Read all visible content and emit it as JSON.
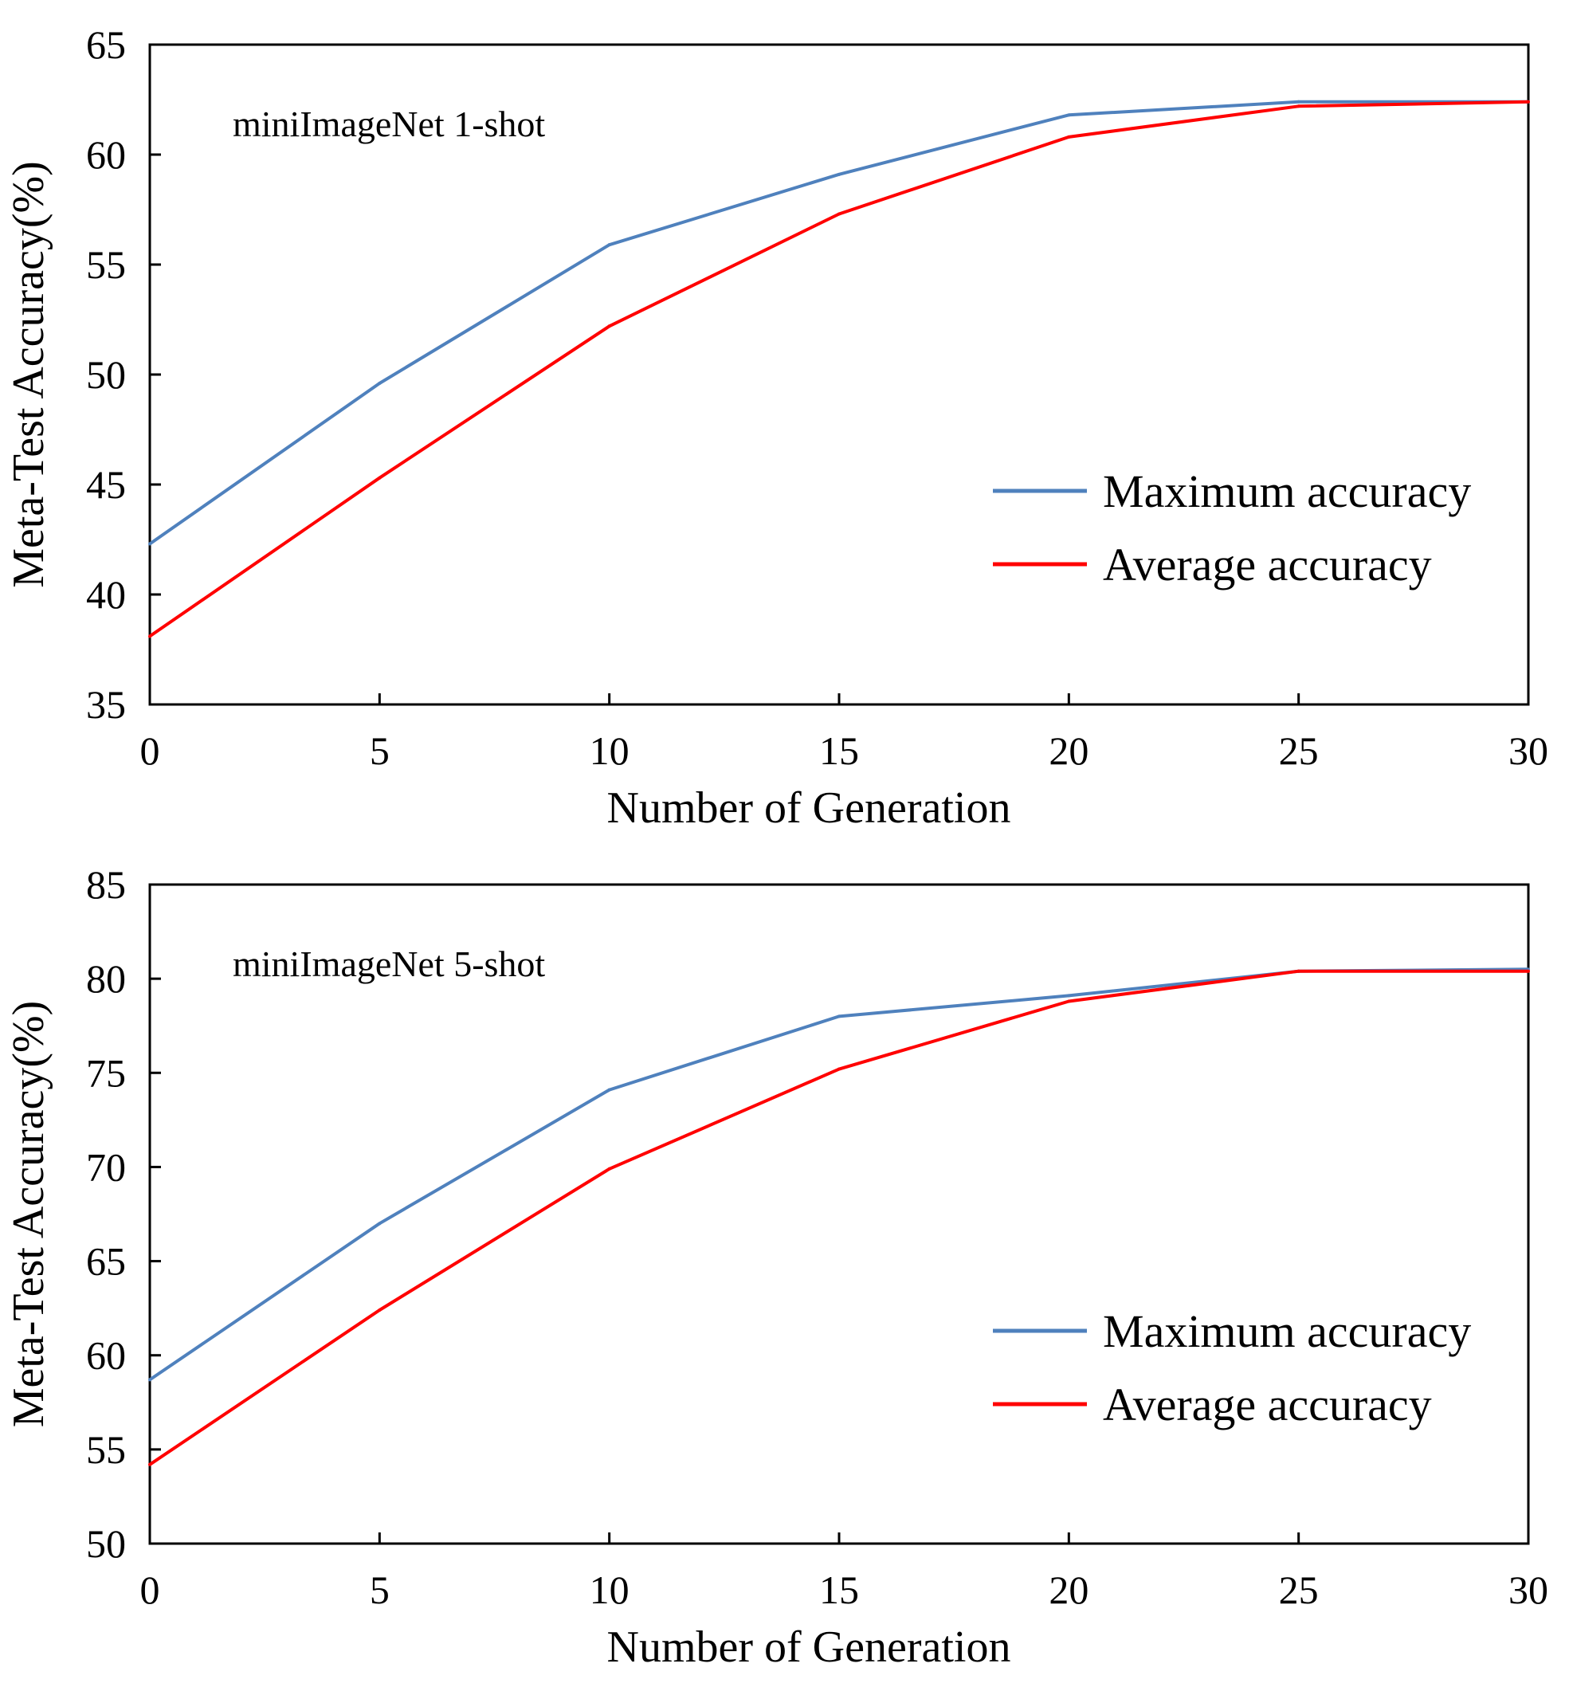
{
  "chart_data": [
    {
      "type": "line",
      "annotation": "miniImageNet 1-shot",
      "xlabel": "Number of Generation",
      "ylabel": "Meta-Test Accuracy(%)",
      "xlim": [
        0,
        30
      ],
      "ylim": [
        35,
        65
      ],
      "xticks": [
        0,
        5,
        10,
        15,
        20,
        25,
        30
      ],
      "yticks": [
        35,
        40,
        45,
        50,
        55,
        60,
        65
      ],
      "grid": false,
      "legend_position": "right-middle",
      "x": [
        0,
        5,
        10,
        15,
        20,
        25,
        30
      ],
      "series": [
        {
          "name": "Maximum accuracy",
          "color": "#4f81bd",
          "values": [
            42.3,
            49.6,
            55.9,
            59.1,
            61.8,
            62.4,
            62.4
          ]
        },
        {
          "name": "Average accuracy",
          "color": "#ff0000",
          "values": [
            38.1,
            45.3,
            52.2,
            57.3,
            60.8,
            62.2,
            62.4
          ]
        }
      ]
    },
    {
      "type": "line",
      "annotation": "miniImageNet 5-shot",
      "xlabel": "Number of Generation",
      "ylabel": "Meta-Test Accuracy(%)",
      "xlim": [
        0,
        30
      ],
      "ylim": [
        50,
        85
      ],
      "xticks": [
        0,
        5,
        10,
        15,
        20,
        25,
        30
      ],
      "yticks": [
        50,
        55,
        60,
        65,
        70,
        75,
        80,
        85
      ],
      "grid": false,
      "legend_position": "right-middle",
      "x": [
        0,
        5,
        10,
        15,
        20,
        25,
        30
      ],
      "series": [
        {
          "name": "Maximum accuracy",
          "color": "#4f81bd",
          "values": [
            58.7,
            67.0,
            74.1,
            78.0,
            79.1,
            80.4,
            80.5
          ]
        },
        {
          "name": "Average accuracy",
          "color": "#ff0000",
          "values": [
            54.2,
            62.4,
            69.9,
            75.2,
            78.8,
            80.4,
            80.4
          ]
        }
      ]
    }
  ]
}
